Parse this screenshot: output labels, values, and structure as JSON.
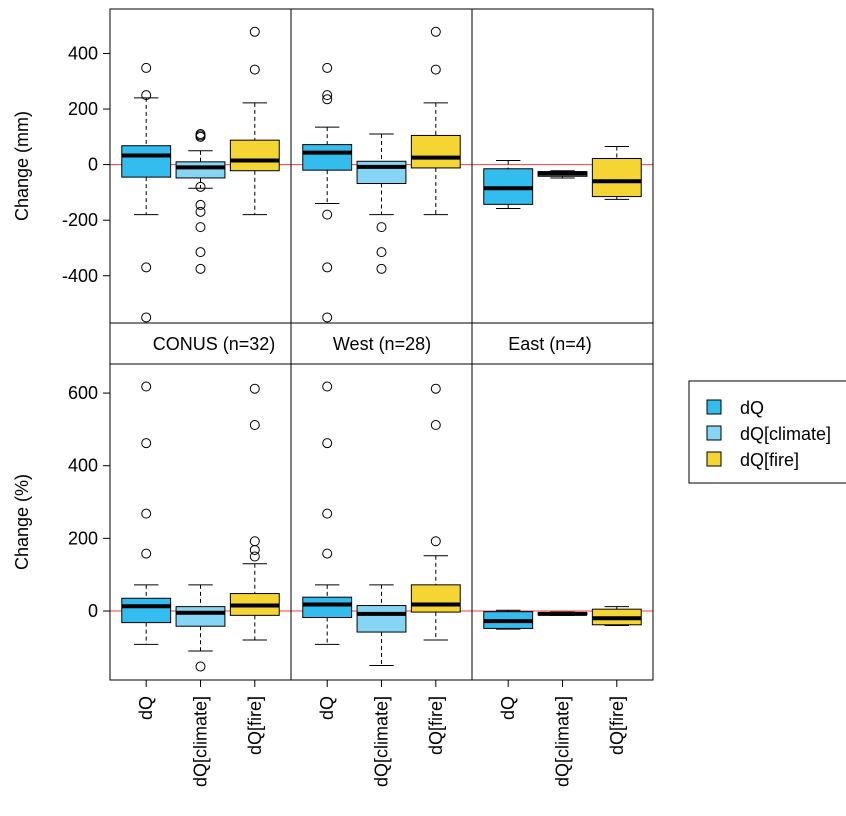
{
  "colors": {
    "dQ": "#33bdee",
    "dQ_climate": "#87d5f5",
    "dQ_fire": "#f5d534",
    "zero_line": "#ff3b3b"
  },
  "chart_data": {
    "type": "boxplot",
    "facets": [
      "CONUS (n=32)",
      "West (n=28)",
      "East (n=4)"
    ],
    "categories": [
      "dQ",
      "dQ[climate]",
      "dQ[fire]"
    ],
    "legend": {
      "placement": "right",
      "entries": [
        "dQ",
        "dQ[climate]",
        "dQ[fire]"
      ]
    },
    "reference_line": 0,
    "panels": [
      {
        "ylabel": "Change (mm)",
        "ylim": [
          -570,
          560
        ],
        "yticks": [
          -400,
          -200,
          0,
          200,
          400
        ],
        "ytick_labels": [
          "-400",
          "-200",
          "0",
          "200",
          "400"
        ],
        "facets": [
          {
            "name": "CONUS (n=32)",
            "boxes": [
              {
                "category": "dQ",
                "min": -180,
                "q1": -45,
                "median": 33,
                "q3": 68,
                "max": 240,
                "outliers": [
                  250,
                  348,
                  -370,
                  -550
                ]
              },
              {
                "category": "dQ[climate]",
                "min": -85,
                "q1": -48,
                "median": -10,
                "q3": 10,
                "max": 50,
                "outliers": [
                  110,
                  105,
                  100,
                  -80,
                  -145,
                  -170,
                  -225,
                  -315,
                  -375
                ]
              },
              {
                "category": "dQ[fire]",
                "min": -180,
                "q1": -22,
                "median": 15,
                "q3": 88,
                "max": 222,
                "outliers": [
                  342,
                  478
                ]
              }
            ]
          },
          {
            "name": "West (n=28)",
            "boxes": [
              {
                "category": "dQ",
                "min": -140,
                "q1": -20,
                "median": 43,
                "q3": 72,
                "max": 135,
                "outliers": [
                  235,
                  250,
                  348,
                  -180,
                  -370,
                  -550
                ]
              },
              {
                "category": "dQ[climate]",
                "min": -180,
                "q1": -68,
                "median": -8,
                "q3": 12,
                "max": 110,
                "outliers": [
                  -225,
                  -315,
                  -375
                ]
              },
              {
                "category": "dQ[fire]",
                "min": -180,
                "q1": -12,
                "median": 25,
                "q3": 105,
                "max": 222,
                "outliers": [
                  342,
                  478
                ]
              }
            ]
          },
          {
            "name": "East (n=4)",
            "boxes": [
              {
                "category": "dQ",
                "min": -158,
                "q1": -143,
                "median": -85,
                "q3": -15,
                "max": 15,
                "outliers": []
              },
              {
                "category": "dQ[climate]",
                "min": -48,
                "q1": -42,
                "median": -32,
                "q3": -25,
                "max": -22,
                "outliers": []
              },
              {
                "category": "dQ[fire]",
                "min": -125,
                "q1": -115,
                "median": -60,
                "q3": 22,
                "max": 65,
                "outliers": []
              }
            ]
          }
        ]
      },
      {
        "ylabel": "Change (%)",
        "ylim": [
          -190,
          680
        ],
        "yticks": [
          0,
          200,
          400,
          600
        ],
        "ytick_labels": [
          "0",
          "200",
          "400",
          "600"
        ],
        "facets": [
          {
            "name": "CONUS (n=32)",
            "boxes": [
              {
                "category": "dQ",
                "min": -92,
                "q1": -32,
                "median": 13,
                "q3": 35,
                "max": 72,
                "outliers": [
                  158,
                  268,
                  462,
                  618
                ]
              },
              {
                "category": "dQ[climate]",
                "min": -110,
                "q1": -42,
                "median": -5,
                "q3": 12,
                "max": 72,
                "outliers": [
                  -153
                ]
              },
              {
                "category": "dQ[fire]",
                "min": -80,
                "q1": -12,
                "median": 15,
                "q3": 48,
                "max": 130,
                "outliers": [
                  150,
                  168,
                  192,
                  512,
                  612
                ]
              }
            ]
          },
          {
            "name": "West (n=28)",
            "boxes": [
              {
                "category": "dQ",
                "min": -92,
                "q1": -18,
                "median": 18,
                "q3": 38,
                "max": 72,
                "outliers": [
                  158,
                  268,
                  462,
                  618
                ]
              },
              {
                "category": "dQ[climate]",
                "min": -150,
                "q1": -58,
                "median": -8,
                "q3": 15,
                "max": 72,
                "outliers": []
              },
              {
                "category": "dQ[fire]",
                "min": -80,
                "q1": -3,
                "median": 18,
                "q3": 72,
                "max": 152,
                "outliers": [
                  192,
                  512,
                  612
                ]
              }
            ]
          },
          {
            "name": "East (n=4)",
            "boxes": [
              {
                "category": "dQ",
                "min": -50,
                "q1": -48,
                "median": -28,
                "q3": -2,
                "max": 2,
                "outliers": []
              },
              {
                "category": "dQ[climate]",
                "min": -12,
                "q1": -10,
                "median": -8,
                "q3": -5,
                "max": -3,
                "outliers": []
              },
              {
                "category": "dQ[fire]",
                "min": -40,
                "q1": -38,
                "median": -20,
                "q3": 5,
                "max": 12,
                "outliers": []
              }
            ]
          }
        ]
      }
    ]
  }
}
